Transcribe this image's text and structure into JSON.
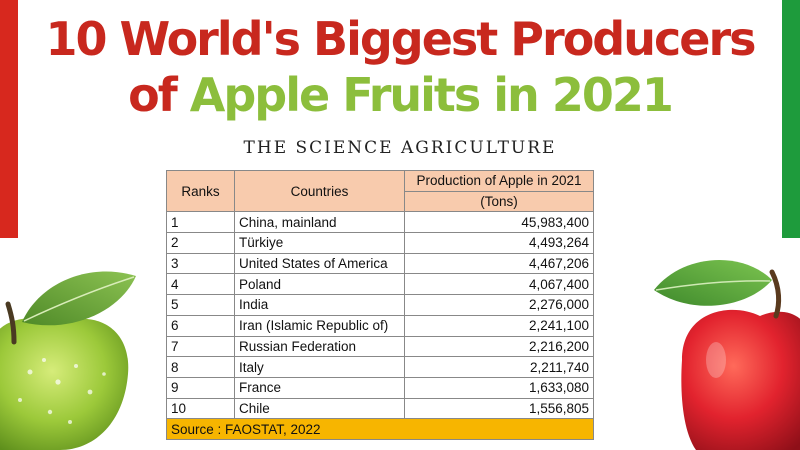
{
  "title": {
    "line1": "10 World's Biggest Producers",
    "line2_prefix": "of",
    "line2_highlight": "Apple Fruits in 2021"
  },
  "subtitle": "THE SCIENCE AGRICULTURE",
  "table": {
    "headers": {
      "ranks": "Ranks",
      "countries": "Countries",
      "production": "Production of Apple in 2021",
      "unit": "(Tons)"
    },
    "rows": [
      {
        "rank": "1",
        "country": "China, mainland",
        "value": "45,983,400"
      },
      {
        "rank": "2",
        "country": "Türkiye",
        "value": "4,493,264"
      },
      {
        "rank": "3",
        "country": "United States of America",
        "value": "4,467,206"
      },
      {
        "rank": "4",
        "country": "Poland",
        "value": "4,067,400"
      },
      {
        "rank": "5",
        "country": "India",
        "value": "2,276,000"
      },
      {
        "rank": "6",
        "country": "Iran (Islamic Republic of)",
        "value": "2,241,100"
      },
      {
        "rank": "7",
        "country": "Russian Federation",
        "value": "2,216,200"
      },
      {
        "rank": "8",
        "country": "Italy",
        "value": "2,211,740"
      },
      {
        "rank": "9",
        "country": "France",
        "value": "1,633,080"
      },
      {
        "rank": "10",
        "country": "Chile",
        "value": "1,556,805"
      }
    ],
    "source": "Source : FAOSTAT, 2022"
  },
  "colors": {
    "red": "#c8281e",
    "green": "#8cbe3c",
    "header_bg": "#f8cbad",
    "source_bg": "#f7b500"
  },
  "images": {
    "left": "green-apple",
    "right": "red-apple"
  }
}
